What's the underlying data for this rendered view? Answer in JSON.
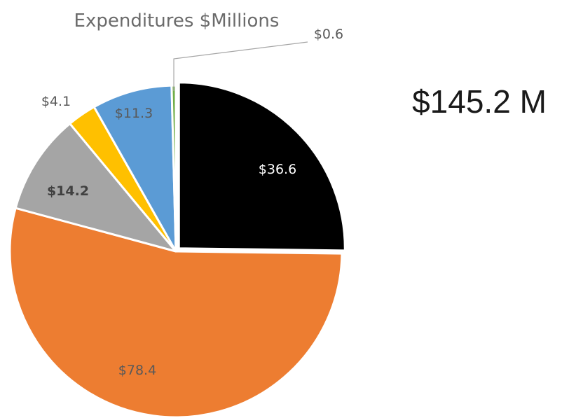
{
  "total_label": "$145.2 M",
  "chart_data": {
    "type": "pie",
    "title": "Expenditures $Millions",
    "start_angle_deg": 0,
    "direction": "clockwise",
    "slices": [
      {
        "value": 36.6,
        "label": "$36.6",
        "color": "#000000",
        "label_color": "#ffffff",
        "bold": false,
        "exploded": true
      },
      {
        "value": 78.4,
        "label": "$78.4",
        "color": "#ED7D31",
        "label_color": "#595959",
        "bold": false,
        "exploded": false
      },
      {
        "value": 14.2,
        "label": "$14.2",
        "color": "#A5A5A5",
        "label_color": "#404040",
        "bold": true,
        "exploded": false
      },
      {
        "value": 4.1,
        "label": "$4.1",
        "color": "#FFC000",
        "label_color": "#595959",
        "bold": false,
        "exploded": false
      },
      {
        "value": 11.3,
        "label": "$11.3",
        "color": "#5B9BD5",
        "label_color": "#595959",
        "bold": false,
        "exploded": false
      },
      {
        "value": 0.6,
        "label": "$0.6",
        "color": "#70AD47",
        "label_color": "#595959",
        "bold": false,
        "exploded": false,
        "leader_line": true
      }
    ]
  }
}
